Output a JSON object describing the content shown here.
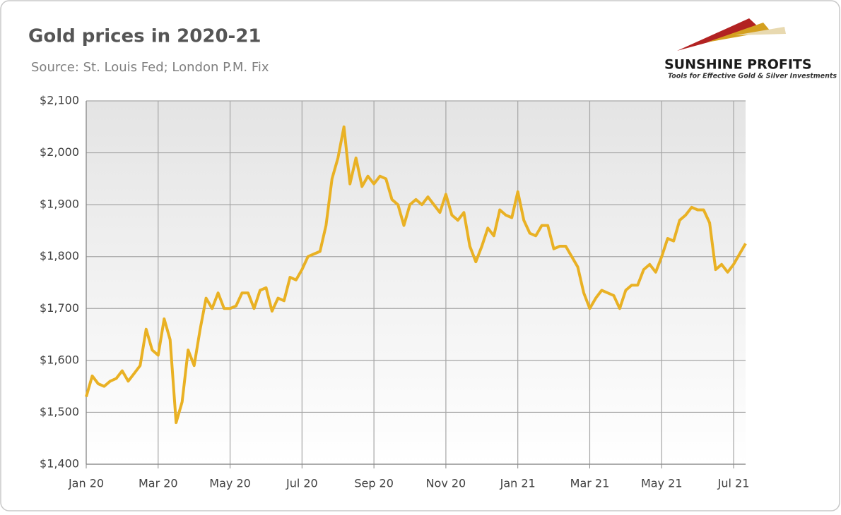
{
  "chart_data": {
    "type": "line",
    "title": "Gold prices in 2020-21",
    "subtitle": "Source: St. Louis Fed; London P.M. Fix",
    "logo": {
      "name": "SUNSHINE PROFITS",
      "tagline": "Tools for Effective Gold & Silver Investments"
    },
    "categories": [
      "Jan 20",
      null,
      null,
      null,
      null,
      null,
      null,
      null,
      null,
      null,
      null,
      null,
      "Mar 20",
      null,
      null,
      null,
      null,
      null,
      null,
      null,
      null,
      null,
      null,
      null,
      "May 20",
      null,
      null,
      null,
      null,
      null,
      null,
      null,
      null,
      null,
      null,
      null,
      "Jul 20",
      null,
      null,
      null,
      null,
      null,
      null,
      null,
      null,
      null,
      null,
      null,
      "Sep 20",
      null,
      null,
      null,
      null,
      null,
      null,
      null,
      null,
      null,
      null,
      null,
      "Nov 20",
      null,
      null,
      null,
      null,
      null,
      null,
      null,
      null,
      null,
      null,
      null,
      "Jan 21",
      null,
      null,
      null,
      null,
      null,
      null,
      null,
      null,
      null,
      null,
      null,
      "Mar 21",
      null,
      null,
      null,
      null,
      null,
      null,
      null,
      null,
      null,
      null,
      null,
      "May 21",
      null,
      null,
      null,
      null,
      null,
      null,
      null,
      null,
      null,
      null,
      null,
      "Jul 21",
      null,
      null
    ],
    "series": [
      {
        "name": "Gold price",
        "color": "#e9b124",
        "values": [
          1530,
          1570,
          1555,
          1550,
          1560,
          1565,
          1580,
          1560,
          1575,
          1590,
          1660,
          1620,
          1610,
          1680,
          1640,
          1480,
          1520,
          1620,
          1590,
          1660,
          1720,
          1700,
          1730,
          1700,
          1700,
          1705,
          1730,
          1730,
          1700,
          1735,
          1740,
          1695,
          1720,
          1715,
          1760,
          1755,
          1775,
          1800,
          1805,
          1810,
          1860,
          1950,
          1990,
          2050,
          1940,
          1990,
          1935,
          1955,
          1940,
          1955,
          1950,
          1910,
          1900,
          1860,
          1900,
          1910,
          1900,
          1915,
          1900,
          1885,
          1920,
          1880,
          1870,
          1885,
          1820,
          1790,
          1820,
          1855,
          1840,
          1890,
          1880,
          1875,
          1925,
          1870,
          1845,
          1840,
          1860,
          1860,
          1815,
          1820,
          1820,
          1800,
          1780,
          1730,
          1700,
          1720,
          1735,
          1730,
          1725,
          1700,
          1735,
          1745,
          1745,
          1775,
          1785,
          1770,
          1800,
          1835,
          1830,
          1870,
          1880,
          1895,
          1890,
          1890,
          1865,
          1775,
          1785,
          1770,
          1785,
          1805,
          1825
        ]
      }
    ],
    "ylim": [
      1400,
      2100
    ],
    "yticks": [
      {
        "value": 1400,
        "label": "$1,400"
      },
      {
        "value": 1500,
        "label": "$1,500"
      },
      {
        "value": 1600,
        "label": "$1,600"
      },
      {
        "value": 1700,
        "label": "$1,700"
      },
      {
        "value": 1800,
        "label": "$1,800"
      },
      {
        "value": 1900,
        "label": "$1,900"
      },
      {
        "value": 2000,
        "label": "$2,000"
      },
      {
        "value": 2100,
        "label": "$2,100"
      }
    ],
    "grid": true
  }
}
